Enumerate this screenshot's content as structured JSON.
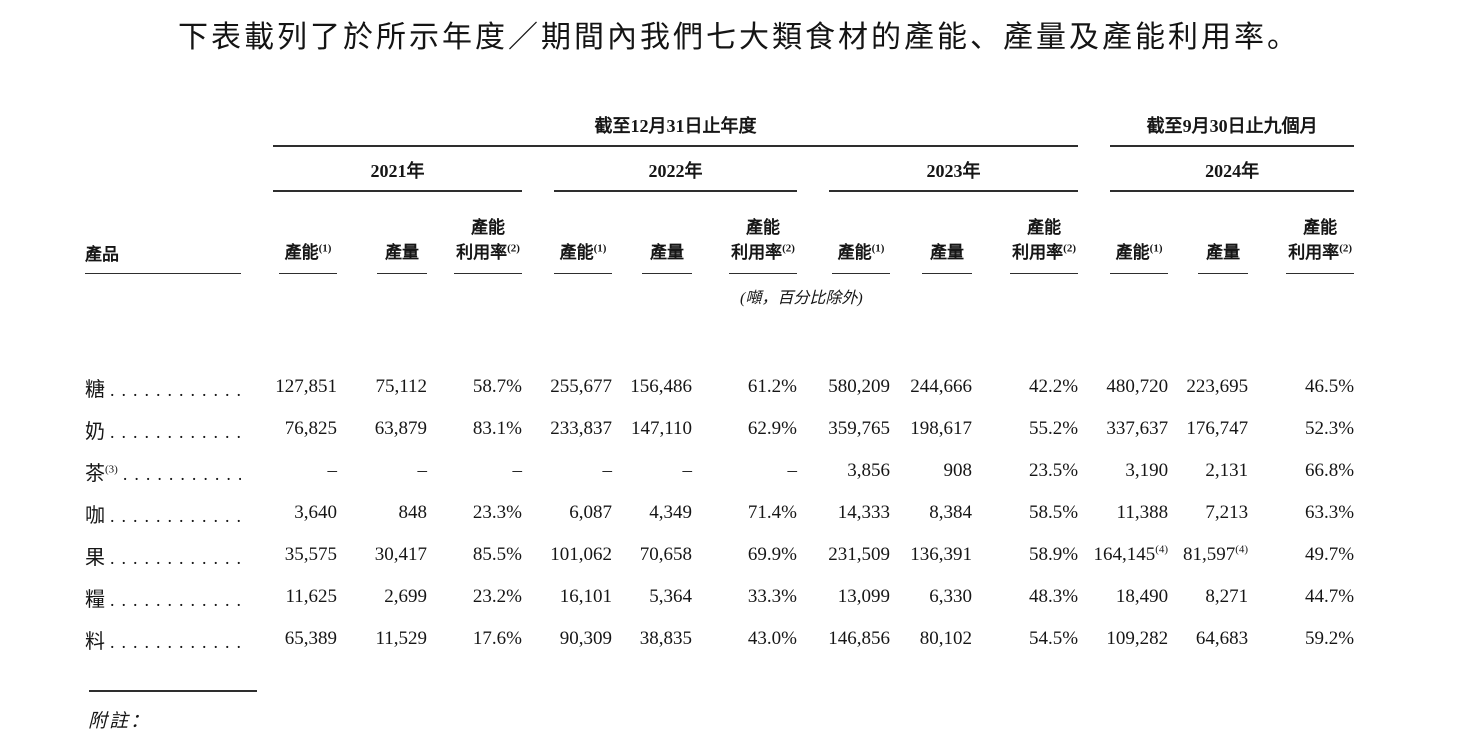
{
  "page": {
    "title": "下表載列了於所示年度／期間內我們七大類食材的產能、產量及產能利用率。",
    "notes_label": "附註："
  },
  "table": {
    "periods": [
      {
        "label": "截至12月31日止年度"
      },
      {
        "label": "截至9月30日止九個月"
      }
    ],
    "years": [
      "2021年",
      "2022年",
      "2023年",
      "2024年"
    ],
    "product_header": "產品",
    "headers": {
      "capacity": "產能",
      "capacity_sup": "(1)",
      "output": "產量",
      "util_line1": "產能",
      "util_line2": "利用率",
      "util_sup": "(2)"
    },
    "unit_note": "(噸，百分比除外)",
    "rows": [
      {
        "label": "糖",
        "label_sup": "",
        "dots": "............",
        "cells": [
          "127,851",
          "75,112",
          "58.7%",
          "255,677",
          "156,486",
          "61.2%",
          "580,209",
          "244,666",
          "42.2%",
          "480,720",
          "223,695",
          "46.5%"
        ]
      },
      {
        "label": "奶",
        "label_sup": "",
        "dots": "............",
        "cells": [
          "76,825",
          "63,879",
          "83.1%",
          "233,837",
          "147,110",
          "62.9%",
          "359,765",
          "198,617",
          "55.2%",
          "337,637",
          "176,747",
          "52.3%"
        ]
      },
      {
        "label": "茶",
        "label_sup": "(3)",
        "dots": "...........",
        "cells": [
          "–",
          "–",
          "–",
          "–",
          "–",
          "–",
          "3,856",
          "908",
          "23.5%",
          "3,190",
          "2,131",
          "66.8%"
        ]
      },
      {
        "label": "咖",
        "label_sup": "",
        "dots": "............",
        "cells": [
          "3,640",
          "848",
          "23.3%",
          "6,087",
          "4,349",
          "71.4%",
          "14,333",
          "8,384",
          "58.5%",
          "11,388",
          "7,213",
          "63.3%"
        ]
      },
      {
        "label": "果",
        "label_sup": "",
        "dots": "............",
        "cells": [
          "35,575",
          "30,417",
          "85.5%",
          "101,062",
          "70,658",
          "69.9%",
          "231,509",
          "136,391",
          "58.9%",
          {
            "v": "164,145",
            "sup": "(4)"
          },
          {
            "v": "81,597",
            "sup": "(4)"
          },
          "49.7%"
        ]
      },
      {
        "label": "糧",
        "label_sup": "",
        "dots": "............",
        "cells": [
          "11,625",
          "2,699",
          "23.2%",
          "16,101",
          "5,364",
          "33.3%",
          "13,099",
          "6,330",
          "48.3%",
          "18,490",
          "8,271",
          "44.7%"
        ]
      },
      {
        "label": "料",
        "label_sup": "",
        "dots": "............",
        "cells": [
          "65,389",
          "11,529",
          "17.6%",
          "90,309",
          "38,835",
          "43.0%",
          "146,856",
          "80,102",
          "54.5%",
          "109,282",
          "64,683",
          "59.2%"
        ]
      }
    ]
  }
}
